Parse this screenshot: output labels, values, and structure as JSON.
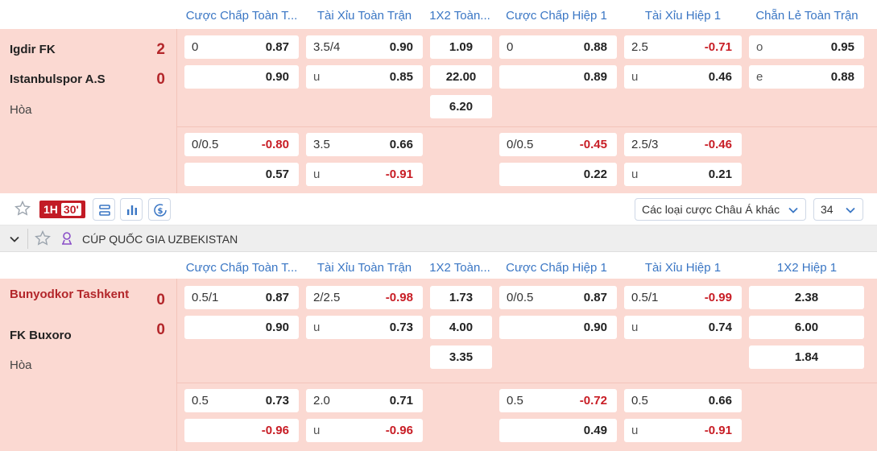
{
  "match1": {
    "headers": [
      "Cược Chấp Toàn T...",
      "Tài Xỉu Toàn Trận",
      "1X2 Toàn...",
      "Cược Chấp Hiệp 1",
      "Tài Xỉu Hiệp 1",
      "Chẵn Lẻ Toàn Trận"
    ],
    "home": {
      "name": "Igdir FK",
      "score": "2"
    },
    "away": {
      "name": "Istanbulspor A.S",
      "score": "0"
    },
    "draw_label": "Hòa",
    "rows": {
      "r1": {
        "hc_line": "0",
        "hc_home": "0.87",
        "hc_away": "0.90",
        "ou_line": "3.5/4",
        "ou_over": "0.90",
        "ou_u": "u",
        "ou_under": "0.85",
        "x12_home": "1.09",
        "x12_away": "22.00",
        "x12_draw": "6.20",
        "h1hc_line": "0",
        "h1hc_home": "0.88",
        "h1hc_away": "0.89",
        "h1ou_line": "2.5",
        "h1ou_over": "-0.71",
        "h1ou_u": "u",
        "h1ou_under": "0.46",
        "oe_o": "o",
        "oe_odd": "0.95",
        "oe_e": "e",
        "oe_even": "0.88"
      },
      "r2": {
        "hc_line": "0/0.5",
        "hc_home": "-0.80",
        "hc_away": "0.57",
        "ou_line": "3.5",
        "ou_over": "0.66",
        "ou_u": "u",
        "ou_under": "-0.91",
        "h1hc_line": "0/0.5",
        "h1hc_home": "-0.45",
        "h1hc_away": "0.22",
        "h1ou_line": "2.5/3",
        "h1ou_over": "-0.46",
        "h1ou_u": "u",
        "h1ou_under": "0.21"
      }
    }
  },
  "toolbar": {
    "live_period": "1H",
    "live_minute": "30'",
    "more_bets_label": "Các loại cược Châu Á khác",
    "count_label": "34"
  },
  "league": {
    "name": "CÚP QUỐC GIA UZBEKISTAN"
  },
  "match2": {
    "headers": [
      "Cược Chấp Toàn T...",
      "Tài Xỉu Toàn Trận",
      "1X2 Toàn...",
      "Cược Chấp Hiệp 1",
      "Tài Xỉu Hiệp 1",
      "1X2 Hiệp 1"
    ],
    "home": {
      "name": "Bunyodkor Tashkent",
      "score": "0"
    },
    "away": {
      "name": "FK Buxoro",
      "score": "0"
    },
    "draw_label": "Hòa",
    "rows": {
      "r1": {
        "hc_line": "0.5/1",
        "hc_home": "0.87",
        "hc_away": "0.90",
        "ou_line": "2/2.5",
        "ou_over": "-0.98",
        "ou_u": "u",
        "ou_under": "0.73",
        "x12_home": "1.73",
        "x12_away": "4.00",
        "x12_draw": "3.35",
        "h1hc_line": "0/0.5",
        "h1hc_home": "0.87",
        "h1hc_away": "0.90",
        "h1ou_line": "0.5/1",
        "h1ou_over": "-0.99",
        "h1ou_u": "u",
        "h1ou_under": "0.74",
        "h1x12_home": "2.38",
        "h1x12_away": "6.00",
        "h1x12_draw": "1.84"
      },
      "r2": {
        "hc_line": "0.5",
        "hc_home": "0.73",
        "hc_away": "-0.96",
        "ou_line": "2.0",
        "ou_over": "0.71",
        "ou_u": "u",
        "ou_under": "-0.96",
        "h1hc_line": "0.5",
        "h1hc_home": "-0.72",
        "h1hc_away": "0.49",
        "h1ou_line": "0.5",
        "h1ou_over": "0.66",
        "h1ou_u": "u",
        "h1ou_under": "-0.91"
      }
    }
  },
  "colors": {
    "accent": "#3a76c4",
    "live": "#c21b25",
    "negative": "#c81d25",
    "row_bg": "#fbd9d2"
  }
}
